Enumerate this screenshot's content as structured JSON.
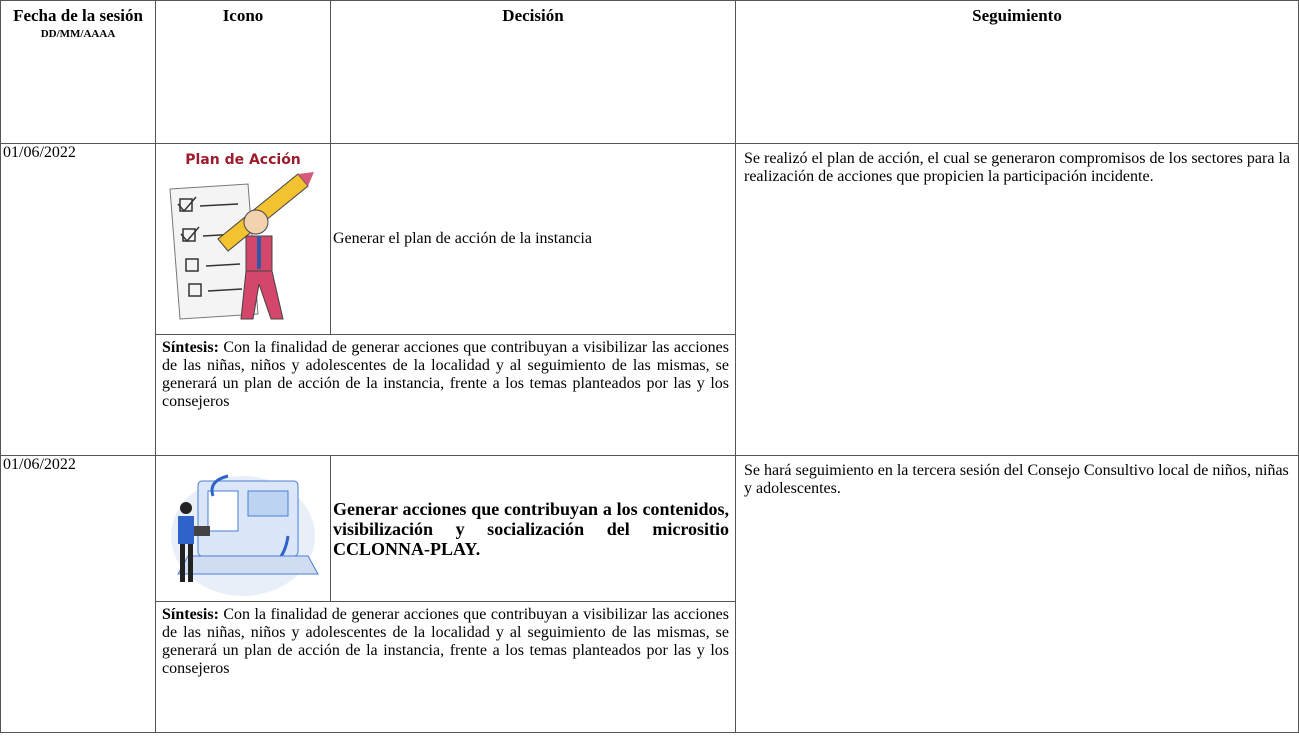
{
  "header": {
    "date": "Fecha de la sesión",
    "date_format": "DD/MM/AAAA",
    "icon": "Icono",
    "decision": "Decisión",
    "followup": "Seguimiento"
  },
  "rows": [
    {
      "date": "01/06/2022",
      "icon_caption": "Plan de Acción",
      "decision": "Generar el plan de acción de la instancia",
      "synthesis_label": "Síntesis:",
      "synthesis": "Con la finalidad de generar acciones que contribuyan a visibilizar las acciones de las niñas, niños y adolescentes de la localidad y al seguimiento de las mismas, se generará un plan de acción de la instancia, frente a los temas planteados por las y los consejeros",
      "followup": "Se realizó el plan de acción, el cual se generaron compromisos de los sectores para la realización de acciones que propicien la participación incidente."
    },
    {
      "date": "01/06/2022",
      "decision": "Generar acciones que contribuyan a los contenidos, visibilización y socialización del micrositio CCLONNA-PLAY.",
      "synthesis_label": "Síntesis:",
      "synthesis": "Con la finalidad de generar acciones que contribuyan a visibilizar las acciones de las niñas, niños y adolescentes de la localidad y al seguimiento de las mismas, se generará un plan de acción de la instancia, frente a los temas planteados por las y los consejeros",
      "followup": "Se hará seguimiento en la tercera sesión del Consejo Consultivo local de niños, niñas y adolescentes."
    }
  ]
}
